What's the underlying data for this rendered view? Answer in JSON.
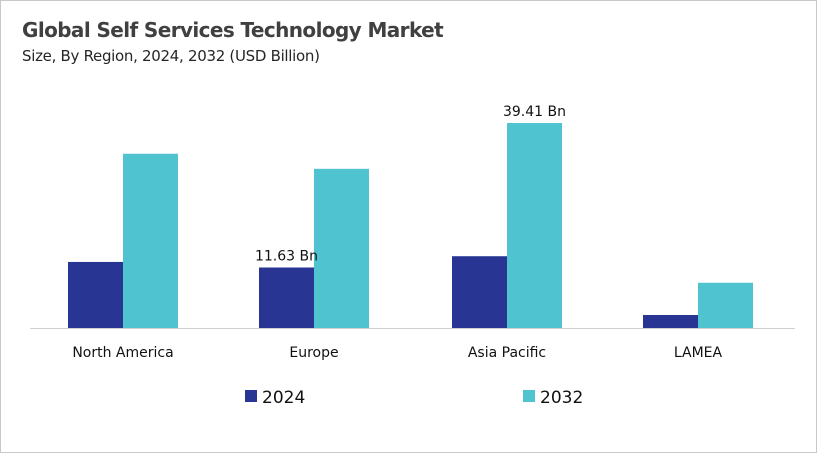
{
  "chart_data": {
    "type": "bar",
    "title": "Global Self Services Technology Market",
    "subtitle": "Size, By Region, 2024, 2032 (USD Billion)",
    "categories": [
      "North America",
      "Europe",
      "Asia Pacific",
      "LAMEA"
    ],
    "series": [
      {
        "name": "2024",
        "color": "#283593",
        "values": [
          12.7,
          11.63,
          13.8,
          2.5
        ]
      },
      {
        "name": "2032",
        "color": "#4fc3d0",
        "values": [
          33.5,
          30.6,
          39.41,
          8.7
        ]
      }
    ],
    "data_labels": [
      {
        "series": 0,
        "category": 1,
        "text": "11.63 Bn"
      },
      {
        "series": 1,
        "category": 2,
        "text": "39.41 Bn"
      }
    ],
    "ylim": [
      0,
      40
    ],
    "grid": false,
    "legend": "bottom"
  }
}
